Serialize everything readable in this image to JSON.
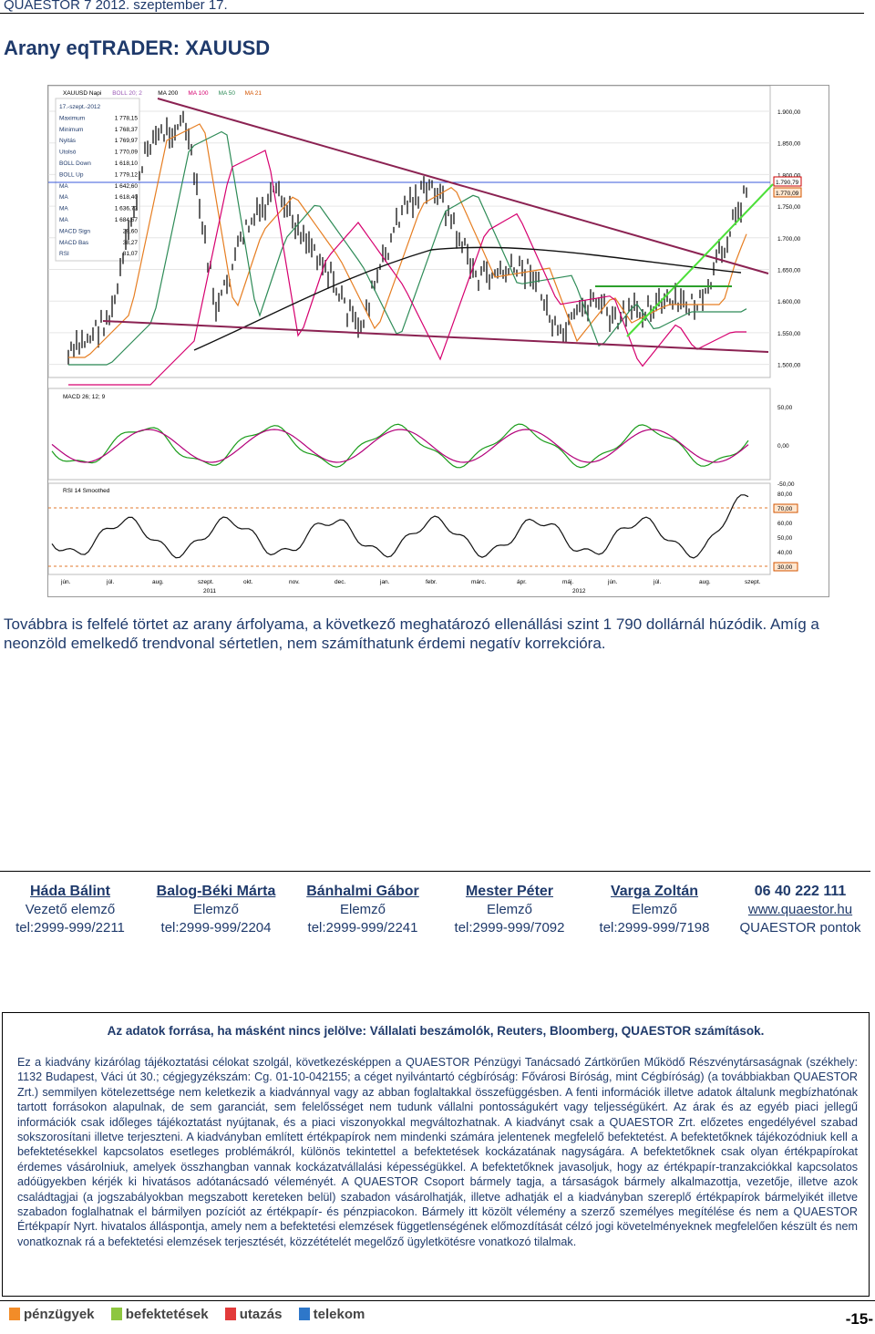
{
  "header": {
    "text": "QUAESTOR 7   2012. szeptember 17."
  },
  "title": "Arany eqTRADER: XAUUSD",
  "chart": {
    "toolbar": [
      "XAUUSD Napi",
      "BOLL 20; 2",
      "MA 200",
      "MA 100",
      "MA 50",
      "MA 21"
    ],
    "info_rows": [
      [
        "17.-szept.-2012",
        ""
      ],
      [
        "Maximum",
        "1 778,15"
      ],
      [
        "Minimum",
        "1 768,37"
      ],
      [
        "Nyitás",
        "1 769,97"
      ],
      [
        "Utolsó",
        "1 770,09"
      ],
      [
        "BOLL Down",
        "1 618,10"
      ],
      [
        "BOLL Up",
        "1 779,12"
      ],
      [
        "MA",
        "1 642,60"
      ],
      [
        "MA",
        "1 618,40"
      ],
      [
        "MA",
        "1 636,73"
      ],
      [
        "MA",
        "1 684,67"
      ],
      [
        "MACD Sign",
        "29,60"
      ],
      [
        "MACD Bas",
        "38,27"
      ],
      [
        "RSI",
        "81,07"
      ]
    ],
    "price_ticks": [
      "1.900,00",
      "1.850,00",
      "1.800,00",
      "1.750,00",
      "1.700,00",
      "1.650,00",
      "1.600,00",
      "1.550,00",
      "1.500,00"
    ],
    "price_labels": [
      "1.790,79",
      "1.770,09"
    ],
    "macd_label": "MACD 26; 12; 9",
    "macd_ticks": [
      "50,00",
      "0,00",
      "-50,00"
    ],
    "rsi_label": "RSI 14 Smoothed",
    "rsi_ticks": [
      "80,00",
      "70,00",
      "60,00",
      "50,00",
      "40,00",
      "30,00"
    ],
    "months": [
      "jún.",
      "júl.",
      "aug.",
      "szept.",
      "okt.",
      "nov.",
      "dec.",
      "jan.",
      "febr.",
      "márc.",
      "ápr.",
      "máj.",
      "jún.",
      "júl.",
      "aug.",
      "szept."
    ],
    "years": [
      "2011",
      "2012"
    ]
  },
  "paragraph": "Továbbra is felfelé törtet az arany árfolyama, a következő meghatározó ellenállási szint 1 790 dollárnál húzódik. Amíg a neonzöld emelkedő trendvonal sértetlen, nem számíthatunk érdemi negatív korrekcióra.",
  "contacts": [
    {
      "name": "Háda Bálint",
      "role": "Vezető elemző",
      "tel": "tel:2999-999/2211"
    },
    {
      "name": "Balog-Béki Márta",
      "role": "Elemző",
      "tel": "tel:2999-999/2204"
    },
    {
      "name": "Bánhalmi Gábor",
      "role": "Elemző",
      "tel": "tel:2999-999/2241"
    },
    {
      "name": "Mester Péter",
      "role": "Elemző",
      "tel": "tel:2999-999/7092"
    },
    {
      "name": "Varga Zoltán",
      "role": "Elemző",
      "tel": "tel:2999-999/7198"
    },
    {
      "name": "06 40 222 111",
      "role": "www.quaestor.hu",
      "tel": "QUAESTOR pontok"
    }
  ],
  "disclaimer": {
    "heading": "Az adatok forrása, ha másként nincs jelölve: Vállalati beszámolók, Reuters, Bloomberg, QUAESTOR számítások.",
    "body": "Ez a kiadvány kizárólag tájékoztatási célokat szolgál, következésképpen a QUAESTOR Pénzügyi Tanácsadó Zártkörűen Működő Részvénytársaságnak (székhely: 1132 Budapest, Váci út 30.; cégjegyzékszám: Cg. 01-10-042155; a céget nyilvántartó cégbíróság: Fővárosi Bíróság, mint Cégbíróság) (a továbbiakban QUAESTOR Zrt.) semmilyen kötelezettsége nem keletkezik a kiadvánnyal vagy az abban foglaltakkal összefüggésben. A fenti információk illetve adatok általunk megbízhatónak tartott forrásokon alapulnak, de sem garanciát, sem felelősséget nem tudunk vállalni pontosságukért vagy teljességükért. Az árak és az egyéb piaci jellegű információk csak időleges tájékoztatást nyújtanak, és a piaci viszonyokkal megváltozhatnak. A kiadványt csak a QUAESTOR Zrt. előzetes engedélyével szabad sokszorosítani illetve terjeszteni. A kiadványban említett értékpapírok nem mindenki számára jelentenek megfelelő befektetést. A befektetőknek tájékozódniuk kell a befektetésekkel kapcsolatos esetleges problémákról, különös tekintettel a befektetések kockázatának nagyságára. A befektetőknek csak olyan értékpapírokat érdemes vásárolniuk, amelyek összhangban vannak kockázatvállalási képességükkel. A befektetőknek javasoljuk, hogy az értékpapír-tranzakciókkal kapcsolatos adóügyekben kérjék ki hivatásos adótanácsadó véleményét. A QUAESTOR Csoport bármely tagja, a társaságok bármely alkalmazottja, vezetője, illetve azok családtagjai (a jogszabályokban megszabott kereteken belül) szabadon vásárolhatják, illetve adhatják el a kiadványban szereplő értékpapírok bármelyikét illetve szabadon foglalhatnak el bármilyen pozíciót az értékpapír- és pénzpiacokon. Bármely itt közölt vélemény a szerző személyes megítélése és nem a QUAESTOR Értékpapír Nyrt. hivatalos álláspontja, amely nem a befektetési elemzések függetlenségének előmozdítását célzó jogi követelményeknek megfelelően készült és nem vonatkoznak rá a befektetési elemzések terjesztését, közzétételét megelőző ügyletkötésre vonatkozó tilalmak."
  },
  "footer": {
    "items": [
      "pénzügyek",
      "befektetések",
      "utazás",
      "telekom"
    ],
    "page": "-15-"
  }
}
